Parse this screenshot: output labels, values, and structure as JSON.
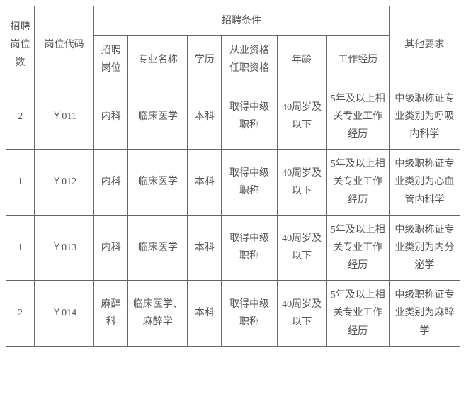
{
  "headers": {
    "count": "招聘岗位数",
    "code": "岗位代码",
    "conditions": "招聘条件",
    "position": "招聘岗位",
    "major": "专业名称",
    "education": "学历",
    "qualification": "从业资格任职资格",
    "age": "年龄",
    "experience": "工作经历",
    "other": "其他要求"
  },
  "rows": [
    {
      "count": "2",
      "code": "Ｙ011",
      "position": "内科",
      "major": "临床医学",
      "education": "本科",
      "qualification": "取得中级职称",
      "age": "40周岁及以下",
      "experience": "5年及以上相关专业工作经历",
      "other": "中级职称证专业类别为呼吸内科学"
    },
    {
      "count": "1",
      "code": "Ｙ012",
      "position": "内科",
      "major": "临床医学",
      "education": "本科",
      "qualification": "取得中级职称",
      "age": "40周岁及以下",
      "experience": "5年及以上相关专业工作经历",
      "other": "中级职称证专业类别为心血管内科学"
    },
    {
      "count": "1",
      "code": "Ｙ013",
      "position": "内科",
      "major": "临床医学",
      "education": "本科",
      "qualification": "取得中级职称",
      "age": "40周岁及以下",
      "experience": "5年及以上相关专业工作经历",
      "other": "中级职称证专业类别为内分泌学"
    },
    {
      "count": "2",
      "code": "Ｙ014",
      "position": "麻醉科",
      "major": "临床医学、麻醉学",
      "education": "本科",
      "qualification": "取得中级职称",
      "age": "40周岁及以下",
      "experience": "5年及以上相关专业工作经历",
      "other": "中级职称证专业类别为麻醉学"
    }
  ]
}
